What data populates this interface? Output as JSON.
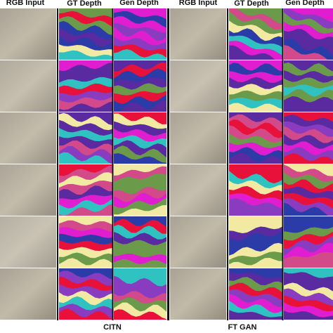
{
  "panels": [
    {
      "columns": [
        "RGB Input",
        "GT Depth",
        "Gen Depth"
      ],
      "caption": "CITN"
    },
    {
      "columns": [
        "RGB Input",
        "GT Depth",
        "Gen Depth"
      ],
      "caption": "FT  GAN"
    }
  ]
}
